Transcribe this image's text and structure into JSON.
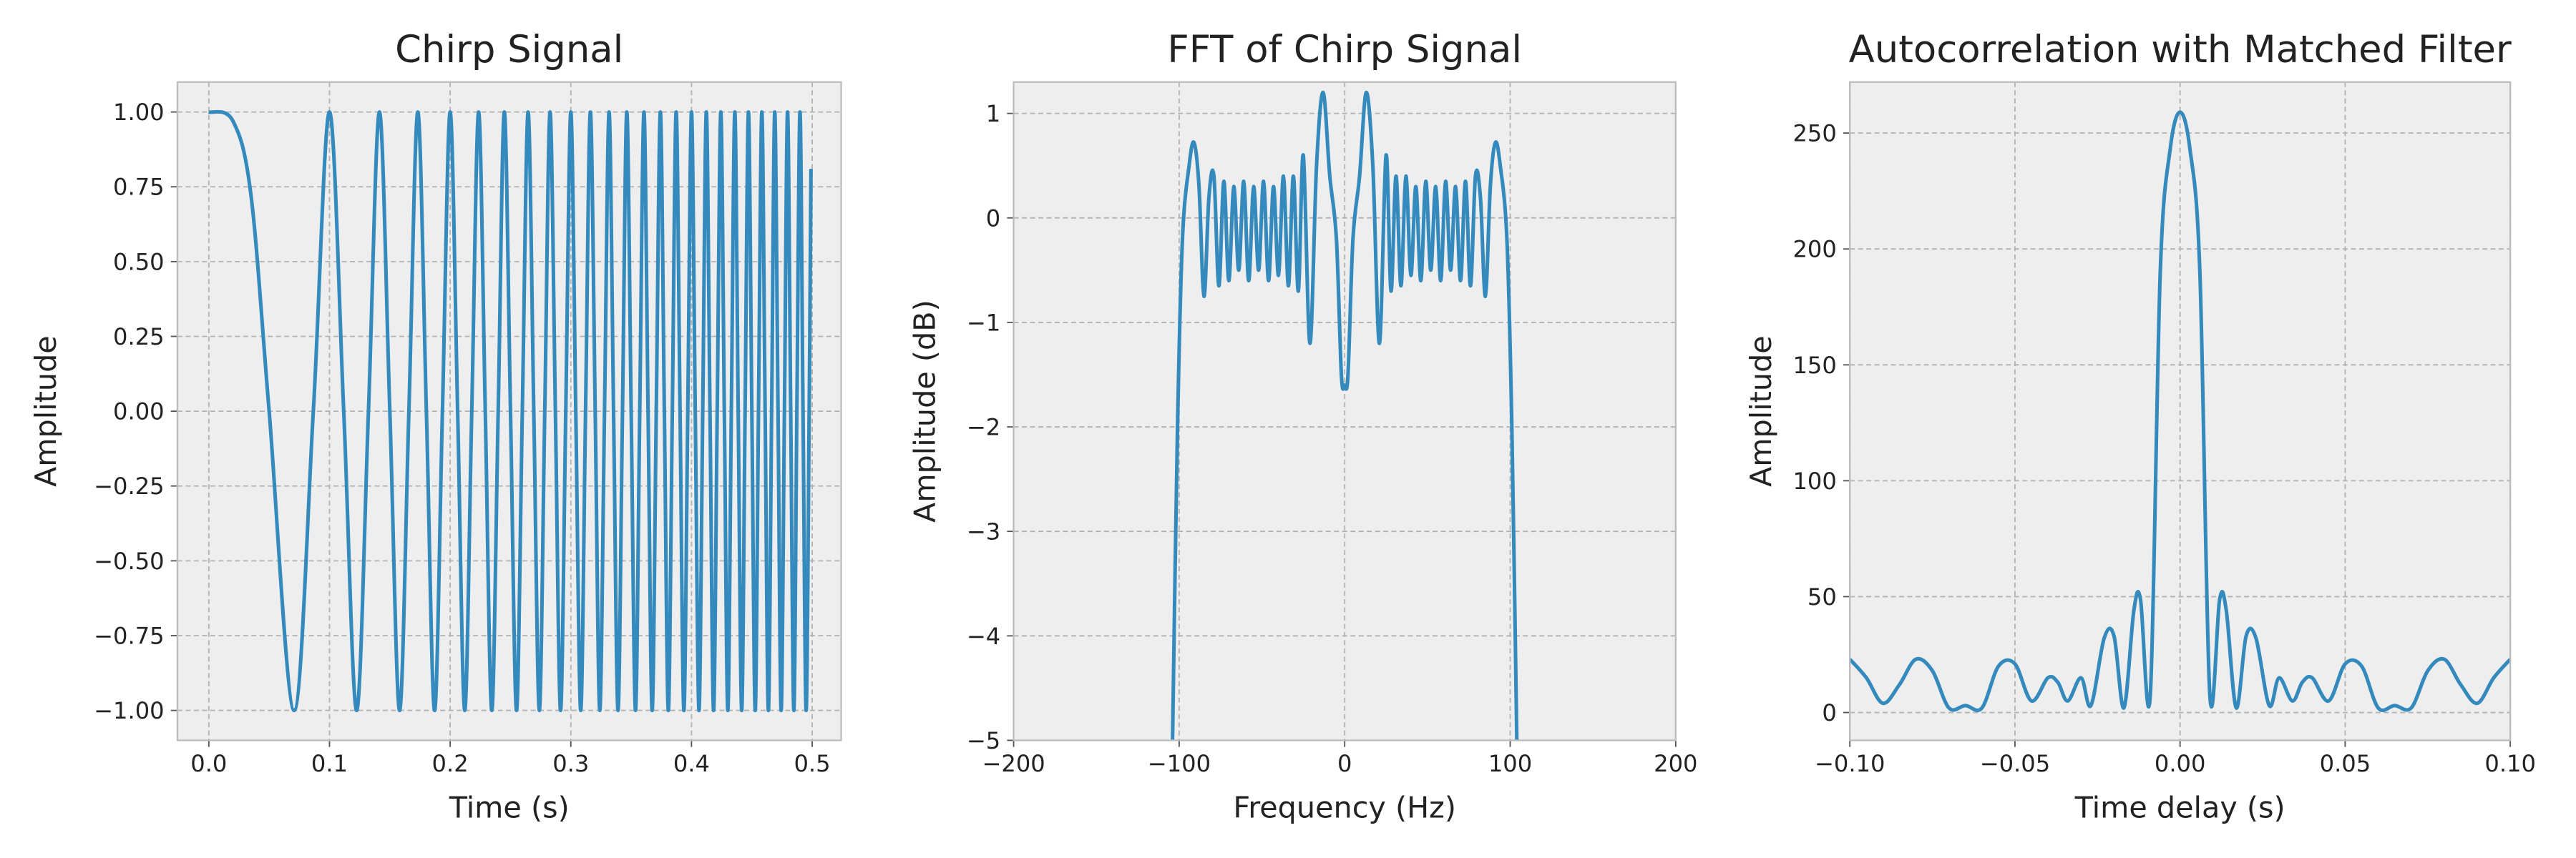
{
  "chart_data": [
    {
      "type": "line",
      "title": "Chirp Signal",
      "xlabel": "Time (s)",
      "ylabel": "Amplitude",
      "grid": true,
      "x": [
        0,
        0.02,
        0.035,
        0.05,
        0.0707,
        0.0866,
        0.1,
        0.1118,
        0.1225,
        0.1323,
        0.1414,
        0.15,
        0.1581,
        0.1658,
        0.1732,
        0.1803,
        0.1871,
        0.1936,
        0.2,
        0.2062,
        0.2121,
        0.2179,
        0.2236,
        0.2291,
        0.2345,
        0.2398,
        0.2449,
        0.25,
        0.255,
        0.2598,
        0.2646,
        0.2693,
        0.2739,
        0.2784,
        0.2828,
        0.2872,
        0.2915,
        0.2958,
        0.3,
        0.3041,
        0.3082,
        0.3122,
        0.3162,
        0.3202,
        0.324,
        0.3279,
        0.3317,
        0.3354,
        0.3391,
        0.3428,
        0.3464,
        0.35,
        0.3536,
        0.3571,
        0.3606,
        0.364,
        0.3674,
        0.3708,
        0.3742,
        0.3775,
        0.3808,
        0.3841,
        0.3873,
        0.3905,
        0.3937,
        0.3969,
        0.4,
        0.4031,
        0.4062,
        0.4093,
        0.4123,
        0.4153,
        0.4183,
        0.4213,
        0.4243,
        0.4272,
        0.4301,
        0.433,
        0.4359,
        0.4387,
        0.4416,
        0.4444,
        0.4472,
        0.45,
        0.4528,
        0.4555,
        0.4583,
        0.461,
        0.4637,
        0.4664,
        0.469,
        0.4717,
        0.4743,
        0.477,
        0.4796,
        0.4822,
        0.4848,
        0.4873,
        0.4899,
        0.4924,
        0.495,
        0.4975,
        0.499
      ],
      "series": [
        {
          "name": "Chirp",
          "color": "#348abd",
          "values": [
            1,
            0.97,
            0.72,
            0,
            -1,
            0,
            1,
            0,
            -1,
            0,
            1,
            0,
            -1,
            0,
            1,
            0,
            -1,
            0,
            1,
            0,
            -1,
            0,
            1,
            0,
            -1,
            0,
            1,
            0,
            -1,
            0,
            1,
            0,
            -1,
            0,
            1,
            0,
            -1,
            0,
            1,
            0,
            -1,
            0,
            1,
            0,
            -1,
            0,
            1,
            0,
            -1,
            0,
            1,
            0,
            -1,
            0,
            1,
            0,
            -1,
            0,
            1,
            0,
            -1,
            0,
            1,
            0,
            -1,
            0,
            1,
            0,
            -1,
            0,
            1,
            0,
            -1,
            0,
            1,
            0,
            -1,
            0,
            1,
            0,
            -1,
            0,
            1,
            0,
            -1,
            0,
            1,
            0,
            -1,
            0,
            1,
            0,
            -1,
            0,
            1,
            0,
            -1,
            0,
            1,
            0,
            -1,
            0,
            0.81
          ]
        }
      ],
      "xlim": [
        -0.026,
        0.524
      ],
      "ylim": [
        -1.1,
        1.1
      ],
      "xticks": [
        {
          "value": 0,
          "label": "0.0"
        },
        {
          "value": 0.1,
          "label": "0.1"
        },
        {
          "value": 0.2,
          "label": "0.2"
        },
        {
          "value": 0.3,
          "label": "0.3"
        },
        {
          "value": 0.4,
          "label": "0.4"
        },
        {
          "value": 0.5,
          "label": "0.5"
        }
      ],
      "yticks": [
        {
          "value": 1,
          "label": "1.00"
        },
        {
          "value": 0.75,
          "label": "0.75"
        },
        {
          "value": 0.5,
          "label": "0.50"
        },
        {
          "value": 0.25,
          "label": "0.25"
        },
        {
          "value": 0,
          "label": "0.00"
        },
        {
          "value": -0.25,
          "label": "−0.25"
        },
        {
          "value": -0.5,
          "label": "−0.50"
        },
        {
          "value": -0.75,
          "label": "−0.75"
        },
        {
          "value": -1,
          "label": "−1.00"
        }
      ]
    },
    {
      "type": "line",
      "title": "FFT of Chirp Signal",
      "xlabel": "Frequency (Hz)",
      "ylabel": "Amplitude (dB)",
      "grid": true,
      "x": [
        -104,
        -101,
        -98,
        -94,
        -91,
        -88,
        -85,
        -82,
        -79,
        -76,
        -73,
        -70,
        -67,
        -64,
        -61,
        -58,
        -55,
        -52,
        -49,
        -46,
        -43,
        -40,
        -37,
        -34,
        -31,
        -28,
        -25,
        -21,
        -17,
        -13,
        -9,
        -5,
        -2,
        0,
        2,
        5,
        9,
        13,
        17,
        21,
        25,
        28,
        31,
        34,
        37,
        40,
        43,
        46,
        49,
        52,
        55,
        58,
        61,
        64,
        67,
        70,
        73,
        76,
        79,
        82,
        85,
        88,
        91,
        94,
        98,
        101,
        104
      ],
      "series": [
        {
          "name": "FFT",
          "color": "#348abd",
          "values": [
            -5,
            -2,
            -0.2,
            0.5,
            0.72,
            0.3,
            -0.75,
            0.2,
            0.4,
            -0.65,
            0.35,
            -0.6,
            0.3,
            -0.5,
            0.35,
            -0.6,
            0.3,
            -0.5,
            0.35,
            -0.6,
            0.3,
            -0.55,
            0.4,
            -0.65,
            0.4,
            -0.7,
            0.6,
            -1.2,
            0.5,
            1.2,
            0.4,
            -0.2,
            -1.5,
            -1.6,
            -1.5,
            -0.2,
            0.4,
            1.2,
            0.5,
            -1.2,
            0.6,
            -0.7,
            0.4,
            -0.65,
            0.4,
            -0.55,
            0.3,
            -0.6,
            0.35,
            -0.5,
            0.3,
            -0.6,
            0.35,
            -0.5,
            0.3,
            -0.6,
            0.35,
            -0.65,
            0.4,
            0.2,
            -0.75,
            0.3,
            0.72,
            0.5,
            -0.2,
            -2,
            -5
          ]
        }
      ],
      "xlim": [
        -200,
        200
      ],
      "ylim": [
        -5,
        1.3
      ],
      "xticks": [
        {
          "value": -200,
          "label": "−200"
        },
        {
          "value": -100,
          "label": "−100"
        },
        0,
        100,
        200
      ],
      "yticks": [
        1,
        0,
        {
          "value": -1,
          "label": "−1"
        },
        {
          "value": -2,
          "label": "−2"
        },
        {
          "value": -3,
          "label": "−3"
        },
        {
          "value": -4,
          "label": "−4"
        },
        {
          "value": -5,
          "label": "−5"
        }
      ]
    },
    {
      "type": "line",
      "title": "Autocorrelation with Matched Filter",
      "xlabel": "Time delay (s)",
      "ylabel": "Amplitude",
      "grid": true,
      "x": [
        -0.1,
        -0.095,
        -0.09,
        -0.085,
        -0.08,
        -0.075,
        -0.07,
        -0.065,
        -0.06,
        -0.055,
        -0.05,
        -0.045,
        -0.04,
        -0.037,
        -0.034,
        -0.03,
        -0.027,
        -0.023,
        -0.02,
        -0.017,
        -0.014,
        -0.012,
        -0.009,
        -0.006,
        -0.003,
        0,
        0.003,
        0.006,
        0.009,
        0.012,
        0.014,
        0.017,
        0.02,
        0.023,
        0.027,
        0.03,
        0.034,
        0.037,
        0.04,
        0.045,
        0.05,
        0.055,
        0.06,
        0.065,
        0.07,
        0.075,
        0.08,
        0.085,
        0.09,
        0.095,
        0.1
      ],
      "series": [
        {
          "name": "Autocorrelation",
          "color": "#348abd",
          "values": [
            23,
            15,
            4,
            12,
            23,
            18,
            2,
            3,
            2,
            20,
            21,
            5,
            15,
            13,
            5,
            15,
            3,
            32,
            33,
            2,
            44,
            49,
            8,
            190,
            243,
            259,
            243,
            190,
            8,
            49,
            44,
            2,
            33,
            32,
            3,
            15,
            5,
            13,
            15,
            5,
            21,
            20,
            2,
            3,
            2,
            18,
            23,
            12,
            4,
            15,
            23
          ]
        }
      ],
      "xlim": [
        -0.1,
        0.1
      ],
      "ylim": [
        -12,
        272
      ],
      "xticks": [
        {
          "value": -0.1,
          "label": "−0.10"
        },
        {
          "value": -0.05,
          "label": "−0.05"
        },
        {
          "value": 0,
          "label": "0.00"
        },
        {
          "value": 0.05,
          "label": "0.05"
        },
        {
          "value": 0.1,
          "label": "0.10"
        }
      ],
      "yticks": [
        0,
        50,
        100,
        150,
        200,
        250
      ]
    }
  ]
}
